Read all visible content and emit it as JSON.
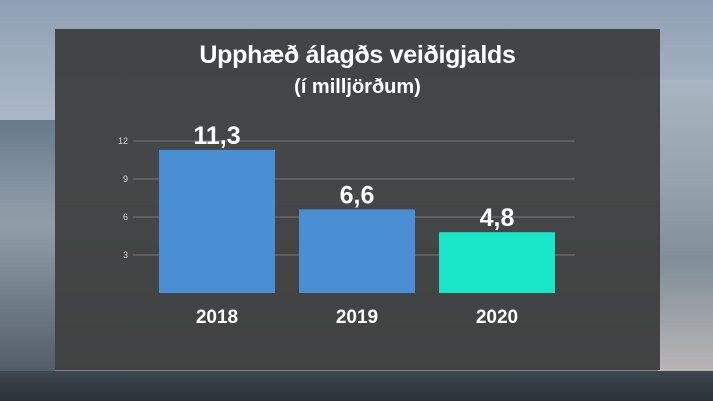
{
  "chart_data": {
    "type": "bar",
    "title": "Upphæð álagðs veiðigjalds",
    "subtitle": "(í milljörðum)",
    "categories": [
      "2018",
      "2019",
      "2020"
    ],
    "values": [
      11.3,
      6.6,
      4.8
    ],
    "data_labels": [
      "11,3",
      "6,6",
      "4,8"
    ],
    "yticks": [
      3,
      6,
      9,
      12
    ],
    "ylim": [
      0,
      12
    ],
    "grid": true,
    "bar_colors": [
      "#4a8fd4",
      "#4a8fd4",
      "#19e6c9"
    ],
    "xlabel": "",
    "ylabel": ""
  }
}
